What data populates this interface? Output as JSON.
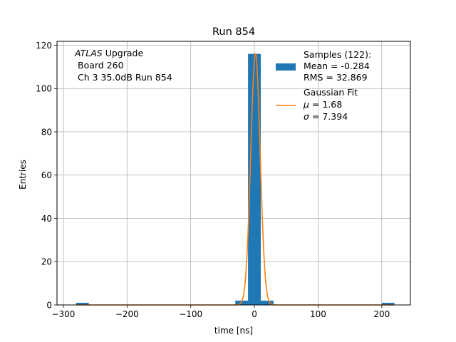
{
  "chart_data": {
    "type": "bar",
    "title": "Run 854",
    "xlabel": "time [ns]",
    "ylabel": "Entries",
    "xlim": [
      -310,
      245
    ],
    "ylim": [
      0,
      121.8
    ],
    "grid": true,
    "x_ticks": [
      -300,
      -200,
      -100,
      0,
      100,
      200
    ],
    "x_tick_labels": [
      "−300",
      "−200",
      "−100",
      "0",
      "100",
      "200"
    ],
    "y_ticks": [
      0,
      20,
      40,
      60,
      80,
      100,
      120
    ],
    "y_tick_labels": [
      "0",
      "20",
      "40",
      "60",
      "80",
      "100",
      "120"
    ],
    "annotation": {
      "line1_italic": "ATLAS",
      "line1_rest": " Upgrade",
      "line2": "Board 260",
      "line3": "Ch 3 35.0dB  Run 854"
    },
    "histogram": {
      "name": "Samples (122):",
      "color": "#1f77b4",
      "bins": [
        {
          "x0": -280,
          "x1": -260,
          "count": 1
        },
        {
          "x0": -30,
          "x1": -10,
          "count": 2
        },
        {
          "x0": -10,
          "x1": 10,
          "count": 116
        },
        {
          "x0": 10,
          "x1": 30,
          "count": 2
        },
        {
          "x0": 200,
          "x1": 220,
          "count": 1
        }
      ]
    },
    "fit": {
      "name": "Gaussian Fit",
      "color": "#ff7f0e",
      "mu": 1.68,
      "sigma": 7.394,
      "amplitude": 116,
      "x_range": [
        -280,
        220
      ]
    },
    "legend": {
      "placement": "top-right",
      "samples_lines": [
        "Samples (122):",
        "Mean = -0.284",
        "RMS = 32.869"
      ],
      "fit_lines": [
        "Gaussian Fit"
      ],
      "fit_mu_symbol": "μ",
      "fit_mu_value": " = 1.68",
      "fit_sigma_symbol": "σ",
      "fit_sigma_value": " = 7.394"
    }
  }
}
